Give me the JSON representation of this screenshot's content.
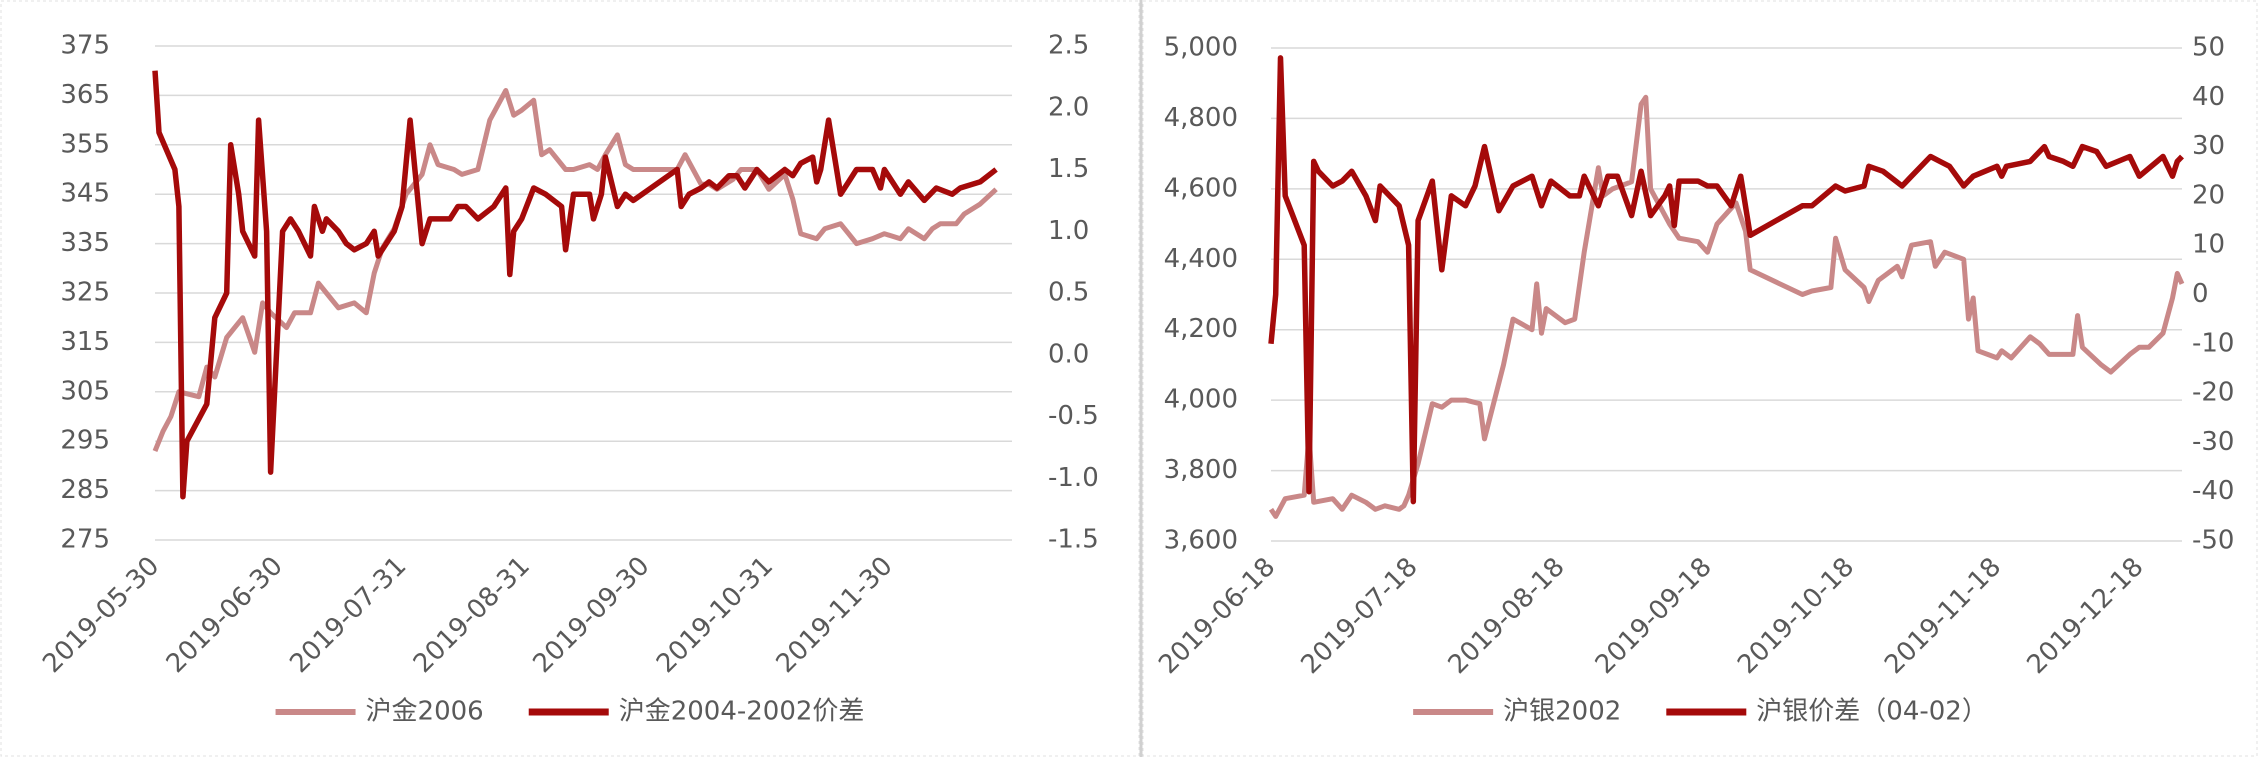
{
  "chart_data": [
    {
      "type": "line",
      "xlim": [
        "2019-05-30",
        "2019-12-31"
      ],
      "xticks": [
        "2019-05-30",
        "2019-06-30",
        "2019-07-31",
        "2019-08-31",
        "2019-09-30",
        "2019-10-31",
        "2019-11-30"
      ],
      "ylim": [
        275,
        375
      ],
      "yticks": [
        275,
        285,
        295,
        305,
        315,
        325,
        335,
        345,
        355,
        365,
        375
      ],
      "y2lim": [
        -1.5,
        2.5
      ],
      "y2ticks": [
        -1.5,
        {
          "value": -1,
          "label": "-1.0"
        },
        -0.5,
        {
          "value": 0,
          "label": "0.0"
        },
        0.5,
        {
          "value": 1,
          "label": "1.0"
        },
        1.5,
        {
          "value": 2,
          "label": "2.0"
        },
        2.5
      ],
      "grid": true,
      "legend": "bottom",
      "series": [
        {
          "name": "沪金2006",
          "color": "#c98888",
          "axis": "y",
          "x": [
            "2019-05-30",
            "2019-06-01",
            "2019-06-03",
            "2019-06-05",
            "2019-06-10",
            "2019-06-12",
            "2019-06-14",
            "2019-06-17",
            "2019-06-19",
            "2019-06-21",
            "2019-06-24",
            "2019-06-26",
            "2019-06-28",
            "2019-07-02",
            "2019-07-04",
            "2019-07-08",
            "2019-07-10",
            "2019-07-12",
            "2019-07-15",
            "2019-07-19",
            "2019-07-22",
            "2019-07-24",
            "2019-07-26",
            "2019-07-29",
            "2019-08-01",
            "2019-08-05",
            "2019-08-07",
            "2019-08-09",
            "2019-08-13",
            "2019-08-15",
            "2019-08-19",
            "2019-08-22",
            "2019-08-26",
            "2019-08-28",
            "2019-08-30",
            "2019-09-02",
            "2019-09-04",
            "2019-09-06",
            "2019-09-10",
            "2019-09-12",
            "2019-09-16",
            "2019-09-18",
            "2019-09-20",
            "2019-09-23",
            "2019-09-25",
            "2019-09-27",
            "2019-10-08",
            "2019-10-10",
            "2019-10-14",
            "2019-10-16",
            "2019-10-18",
            "2019-10-22",
            "2019-10-24",
            "2019-10-28",
            "2019-10-31",
            "2019-11-04",
            "2019-11-06",
            "2019-11-08",
            "2019-11-12",
            "2019-11-14",
            "2019-11-18",
            "2019-11-20",
            "2019-11-22",
            "2019-11-26",
            "2019-11-29",
            "2019-12-03",
            "2019-12-05",
            "2019-12-09",
            "2019-12-11",
            "2019-12-13",
            "2019-12-17",
            "2019-12-19",
            "2019-12-23",
            "2019-12-27"
          ],
          "values": [
            293,
            297,
            300,
            305,
            304,
            310,
            308,
            316,
            318,
            320,
            313,
            323,
            321,
            318,
            321,
            321,
            327,
            325,
            322,
            323,
            321,
            329,
            334,
            338,
            345,
            349,
            355,
            351,
            350,
            349,
            350,
            360,
            366,
            361,
            362,
            364,
            353,
            354,
            350,
            350,
            351,
            350,
            353,
            357,
            351,
            350,
            350,
            353,
            347,
            347,
            346,
            348,
            350,
            350,
            346,
            349,
            344,
            337,
            336,
            338,
            339,
            337,
            335,
            336,
            337,
            336,
            338,
            336,
            338,
            339,
            339,
            341,
            343,
            346
          ]
        },
        {
          "name": "沪金2004-2002价差",
          "color": "#a50a0a",
          "axis": "y2",
          "x": [
            "2019-05-30",
            "2019-05-31",
            "2019-06-04",
            "2019-06-05",
            "2019-06-06",
            "2019-06-07",
            "2019-06-12",
            "2019-06-14",
            "2019-06-17",
            "2019-06-18",
            "2019-06-20",
            "2019-06-21",
            "2019-06-24",
            "2019-06-25",
            "2019-06-27",
            "2019-06-28",
            "2019-07-01",
            "2019-07-03",
            "2019-07-05",
            "2019-07-08",
            "2019-07-09",
            "2019-07-11",
            "2019-07-12",
            "2019-07-15",
            "2019-07-17",
            "2019-07-19",
            "2019-07-22",
            "2019-07-24",
            "2019-07-25",
            "2019-07-29",
            "2019-07-31",
            "2019-08-02",
            "2019-08-05",
            "2019-08-07",
            "2019-08-12",
            "2019-08-14",
            "2019-08-16",
            "2019-08-19",
            "2019-08-23",
            "2019-08-26",
            "2019-08-27",
            "2019-08-28",
            "2019-08-30",
            "2019-09-02",
            "2019-09-05",
            "2019-09-09",
            "2019-09-10",
            "2019-09-12",
            "2019-09-16",
            "2019-09-17",
            "2019-09-19",
            "2019-09-20",
            "2019-09-23",
            "2019-09-25",
            "2019-09-27",
            "2019-10-08",
            "2019-10-09",
            "2019-10-11",
            "2019-10-14",
            "2019-10-16",
            "2019-10-18",
            "2019-10-21",
            "2019-10-23",
            "2019-10-25",
            "2019-10-28",
            "2019-10-31",
            "2019-11-04",
            "2019-11-06",
            "2019-11-08",
            "2019-11-11",
            "2019-11-12",
            "2019-11-13",
            "2019-11-15",
            "2019-11-18",
            "2019-11-20",
            "2019-11-22",
            "2019-11-26",
            "2019-11-28",
            "2019-11-29",
            "2019-12-03",
            "2019-12-05",
            "2019-12-09",
            "2019-12-12",
            "2019-12-16",
            "2019-12-18",
            "2019-12-23",
            "2019-12-27"
          ],
          "values": [
            2.3,
            1.8,
            1.5,
            1.2,
            -1.15,
            -0.7,
            -0.4,
            0.3,
            0.5,
            1.7,
            1.3,
            1.0,
            0.8,
            1.9,
            1.0,
            -0.95,
            1.0,
            1.1,
            1.0,
            0.8,
            1.2,
            1.0,
            1.1,
            1.0,
            0.9,
            0.85,
            0.9,
            1.0,
            0.8,
            1.0,
            1.2,
            1.9,
            0.9,
            1.1,
            1.1,
            1.2,
            1.2,
            1.1,
            1.2,
            1.35,
            0.65,
            1.0,
            1.1,
            1.35,
            1.3,
            1.2,
            0.85,
            1.3,
            1.3,
            1.1,
            1.3,
            1.6,
            1.2,
            1.3,
            1.25,
            1.5,
            1.2,
            1.3,
            1.35,
            1.4,
            1.35,
            1.45,
            1.45,
            1.35,
            1.5,
            1.4,
            1.5,
            1.45,
            1.55,
            1.6,
            1.4,
            1.5,
            1.9,
            1.3,
            1.4,
            1.5,
            1.5,
            1.35,
            1.5,
            1.3,
            1.4,
            1.25,
            1.35,
            1.3,
            1.35,
            1.4,
            1.5
          ]
        }
      ]
    },
    {
      "type": "line",
      "xlim": [
        "2019-06-18",
        "2019-12-27"
      ],
      "xticks": [
        "2019-06-18",
        "2019-07-18",
        "2019-08-18",
        "2019-09-18",
        "2019-10-18",
        "2019-11-18",
        "2019-12-18"
      ],
      "ylim": [
        3600,
        5000
      ],
      "yticks": [
        {
          "value": 3600,
          "label": "3,600"
        },
        {
          "value": 3800,
          "label": "3,800"
        },
        {
          "value": 4000,
          "label": "4,000"
        },
        {
          "value": 4200,
          "label": "4,200"
        },
        {
          "value": 4400,
          "label": "4,400"
        },
        {
          "value": 4600,
          "label": "4,600"
        },
        {
          "value": 4800,
          "label": "4,800"
        },
        {
          "value": 5000,
          "label": "5,000"
        }
      ],
      "y2lim": [
        -50,
        50
      ],
      "y2ticks": [
        -50,
        -40,
        -30,
        -20,
        -10,
        0,
        10,
        20,
        30,
        40,
        50
      ],
      "grid": true,
      "legend": "bottom",
      "series": [
        {
          "name": "沪银2002",
          "color": "#c98888",
          "axis": "y",
          "x": [
            "2019-06-18",
            "2019-06-19",
            "2019-06-21",
            "2019-06-25",
            "2019-06-26",
            "2019-06-27",
            "2019-07-01",
            "2019-07-03",
            "2019-07-05",
            "2019-07-08",
            "2019-07-10",
            "2019-07-12",
            "2019-07-15",
            "2019-07-16",
            "2019-07-17",
            "2019-07-19",
            "2019-07-22",
            "2019-07-24",
            "2019-07-26",
            "2019-07-29",
            "2019-08-01",
            "2019-08-02",
            "2019-08-06",
            "2019-08-08",
            "2019-08-12",
            "2019-08-13",
            "2019-08-14",
            "2019-08-15",
            "2019-08-19",
            "2019-08-21",
            "2019-08-23",
            "2019-08-26",
            "2019-08-27",
            "2019-08-29",
            "2019-09-02",
            "2019-09-04",
            "2019-09-05",
            "2019-09-06",
            "2019-09-10",
            "2019-09-12",
            "2019-09-16",
            "2019-09-18",
            "2019-09-20",
            "2019-09-24",
            "2019-09-26",
            "2019-09-27",
            "2019-10-08",
            "2019-10-10",
            "2019-10-14",
            "2019-10-15",
            "2019-10-17",
            "2019-10-21",
            "2019-10-22",
            "2019-10-24",
            "2019-10-28",
            "2019-10-29",
            "2019-10-31",
            "2019-11-04",
            "2019-11-05",
            "2019-11-07",
            "2019-11-11",
            "2019-11-12",
            "2019-11-13",
            "2019-11-14",
            "2019-11-18",
            "2019-11-19",
            "2019-11-21",
            "2019-11-25",
            "2019-11-27",
            "2019-11-29",
            "2019-12-02",
            "2019-12-04",
            "2019-12-05",
            "2019-12-06",
            "2019-12-10",
            "2019-12-12",
            "2019-12-16",
            "2019-12-18",
            "2019-12-20",
            "2019-12-23",
            "2019-12-25",
            "2019-12-26",
            "2019-12-27"
          ],
          "values": [
            3690,
            3670,
            3720,
            3730,
            3900,
            3710,
            3720,
            3690,
            3730,
            3710,
            3690,
            3700,
            3690,
            3700,
            3730,
            3820,
            3990,
            3980,
            4000,
            4000,
            3990,
            3890,
            4100,
            4230,
            4200,
            4330,
            4190,
            4260,
            4220,
            4230,
            4420,
            4660,
            4580,
            4600,
            4620,
            4840,
            4860,
            4600,
            4500,
            4460,
            4450,
            4420,
            4500,
            4560,
            4480,
            4370,
            4300,
            4310,
            4320,
            4460,
            4370,
            4320,
            4280,
            4340,
            4380,
            4350,
            4440,
            4450,
            4380,
            4420,
            4400,
            4230,
            4290,
            4140,
            4120,
            4140,
            4120,
            4180,
            4160,
            4130,
            4130,
            4130,
            4240,
            4150,
            4100,
            4080,
            4130,
            4150,
            4150,
            4190,
            4290,
            4360,
            4330
          ]
        },
        {
          "name": "沪银价差（04-02）",
          "color": "#a50a0a",
          "axis": "y2",
          "x": [
            "2019-06-18",
            "2019-06-19",
            "2019-06-20",
            "2019-06-21",
            "2019-06-25",
            "2019-06-26",
            "2019-06-27",
            "2019-06-28",
            "2019-07-01",
            "2019-07-03",
            "2019-07-05",
            "2019-07-08",
            "2019-07-10",
            "2019-07-11",
            "2019-07-15",
            "2019-07-17",
            "2019-07-18",
            "2019-07-19",
            "2019-07-22",
            "2019-07-24",
            "2019-07-26",
            "2019-07-29",
            "2019-07-31",
            "2019-08-02",
            "2019-08-05",
            "2019-08-08",
            "2019-08-12",
            "2019-08-14",
            "2019-08-16",
            "2019-08-20",
            "2019-08-22",
            "2019-08-23",
            "2019-08-26",
            "2019-08-28",
            "2019-08-30",
            "2019-09-02",
            "2019-09-04",
            "2019-09-06",
            "2019-09-09",
            "2019-09-10",
            "2019-09-11",
            "2019-09-12",
            "2019-09-16",
            "2019-09-18",
            "2019-09-20",
            "2019-09-23",
            "2019-09-25",
            "2019-09-27",
            "2019-10-08",
            "2019-10-10",
            "2019-10-15",
            "2019-10-17",
            "2019-10-21",
            "2019-10-22",
            "2019-10-25",
            "2019-10-29",
            "2019-10-31",
            "2019-11-04",
            "2019-11-06",
            "2019-11-08",
            "2019-11-11",
            "2019-11-13",
            "2019-11-18",
            "2019-11-19",
            "2019-11-20",
            "2019-11-25",
            "2019-11-28",
            "2019-11-29",
            "2019-12-02",
            "2019-12-04",
            "2019-12-06",
            "2019-12-09",
            "2019-12-11",
            "2019-12-16",
            "2019-12-18",
            "2019-12-23",
            "2019-12-25",
            "2019-12-26",
            "2019-12-27"
          ],
          "values": [
            -10,
            0,
            48,
            20,
            10,
            -40,
            27,
            25,
            22,
            23,
            25,
            20,
            15,
            22,
            18,
            10,
            -42,
            15,
            23,
            5,
            20,
            18,
            22,
            30,
            17,
            22,
            24,
            18,
            23,
            20,
            20,
            24,
            18,
            24,
            24,
            16,
            25,
            16,
            20,
            22,
            14,
            23,
            23,
            22,
            22,
            18,
            24,
            12,
            18,
            18,
            22,
            21,
            22,
            26,
            25,
            22,
            24,
            28,
            27,
            26,
            22,
            24,
            26,
            24,
            26,
            27,
            30,
            28,
            27,
            26,
            30,
            29,
            26,
            28,
            24,
            28,
            24,
            27,
            28
          ]
        }
      ]
    }
  ]
}
